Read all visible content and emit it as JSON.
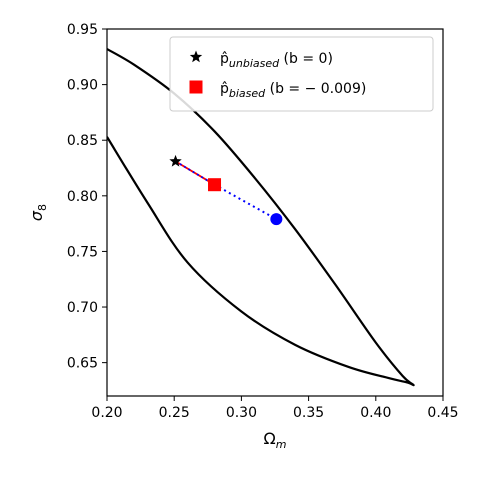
{
  "chart_data": {
    "type": "line",
    "xlabel": "Ω",
    "xlabel_sub": "m",
    "ylabel": "σ",
    "ylabel_sub": "8",
    "xlim": [
      0.2,
      0.45
    ],
    "ylim": [
      0.62,
      0.95
    ],
    "x_ticks": [
      0.2,
      0.25,
      0.3,
      0.35,
      0.4,
      0.45
    ],
    "x_tick_labels": [
      "0.20",
      "0.25",
      "0.30",
      "0.35",
      "0.40",
      "0.45"
    ],
    "y_ticks": [
      0.65,
      0.7,
      0.75,
      0.8,
      0.85,
      0.9,
      0.95
    ],
    "y_tick_labels": [
      "0.65",
      "0.70",
      "0.75",
      "0.80",
      "0.85",
      "0.90",
      "0.95"
    ],
    "grid": false,
    "legend_position": "top-right",
    "contour": {
      "color": "#000000",
      "x": [
        0.2,
        0.22,
        0.25,
        0.28,
        0.31,
        0.34,
        0.37,
        0.4,
        0.42,
        0.428,
        0.424,
        0.41,
        0.38,
        0.34,
        0.3,
        0.26,
        0.23,
        0.2
      ],
      "y": [
        0.932,
        0.918,
        0.892,
        0.858,
        0.816,
        0.77,
        0.72,
        0.668,
        0.638,
        0.63,
        0.632,
        0.636,
        0.646,
        0.666,
        0.696,
        0.74,
        0.794,
        0.853
      ]
    },
    "points": [
      {
        "name": "unbiased",
        "label_main": "p̂",
        "label_sub": "unbiased",
        "label_suffix": " (b = 0)",
        "x": 0.251,
        "y": 0.831,
        "marker": "star",
        "color": "#000000"
      },
      {
        "name": "biased",
        "label_main": "p̂",
        "label_sub": "biased",
        "label_suffix": " (b = − 0.009)",
        "x": 0.28,
        "y": 0.81,
        "marker": "square",
        "color": "#ff0000"
      },
      {
        "name": "projected",
        "x": 0.326,
        "y": 0.779,
        "marker": "circle",
        "color": "#0000ff"
      }
    ],
    "segments": [
      {
        "name": "unbiased-to-biased",
        "from": [
          0.251,
          0.831
        ],
        "to": [
          0.28,
          0.81
        ],
        "colors": [
          "#ff0000",
          "#0000ff"
        ],
        "style": "dashed"
      },
      {
        "name": "biased-to-projected",
        "from": [
          0.28,
          0.81
        ],
        "to": [
          0.326,
          0.779
        ],
        "color": "#0000ff",
        "style": "dotted"
      }
    ]
  }
}
